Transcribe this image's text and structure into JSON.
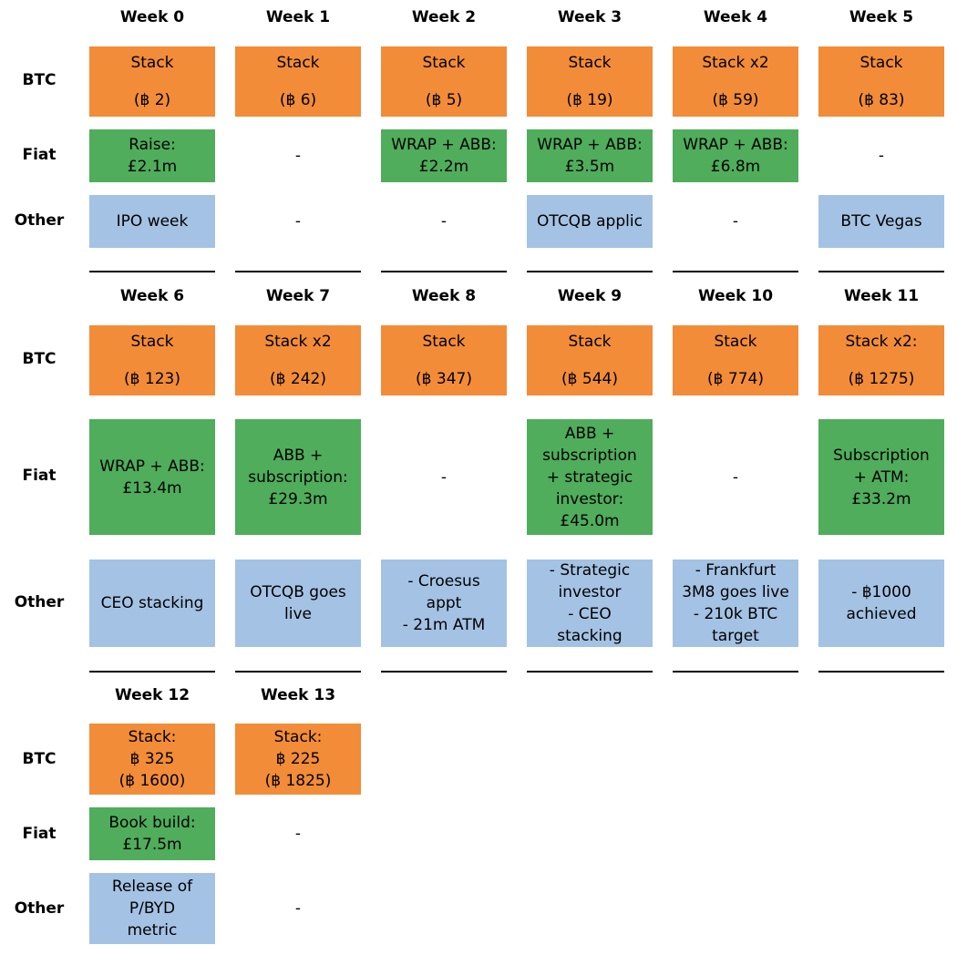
{
  "sections": [
    {
      "weeks": [
        {
          "label": "Week 0",
          "btc": [
            "Stack",
            "(฿ 2)"
          ],
          "fiat": [
            "Raise:",
            "£2.1m"
          ],
          "other": [
            "IPO week"
          ]
        },
        {
          "label": "Week 1",
          "btc": [
            "Stack",
            "(฿ 6)"
          ],
          "fiat": [
            "-"
          ],
          "other": [
            "-"
          ]
        },
        {
          "label": "Week 2",
          "btc": [
            "Stack",
            "(฿ 5)"
          ],
          "fiat": [
            "WRAP + ABB:",
            "£2.2m"
          ],
          "other": [
            "-"
          ]
        },
        {
          "label": "Week 3",
          "btc": [
            "Stack",
            "(฿ 19)"
          ],
          "fiat": [
            "WRAP + ABB:",
            "£3.5m"
          ],
          "other": [
            "OTCQB applic"
          ]
        },
        {
          "label": "Week 4",
          "btc": [
            "Stack x2",
            "(฿ 59)"
          ],
          "fiat": [
            "WRAP + ABB:",
            "£6.8m"
          ],
          "other": [
            "-"
          ]
        },
        {
          "label": "Week 5",
          "btc": [
            "Stack",
            "(฿ 83)"
          ],
          "fiat": [
            "-"
          ],
          "other": [
            "BTC Vegas"
          ]
        }
      ]
    },
    {
      "weeks": [
        {
          "label": "Week 6",
          "btc": [
            "Stack",
            "(฿ 123)"
          ],
          "fiat": [
            "WRAP + ABB:",
            "£13.4m"
          ],
          "other": [
            "CEO stacking"
          ]
        },
        {
          "label": "Week 7",
          "btc": [
            "Stack x2",
            "(฿ 242)"
          ],
          "fiat": [
            "ABB +",
            "subscription:",
            "£29.3m"
          ],
          "other": [
            "OTCQB goes",
            "live"
          ]
        },
        {
          "label": "Week 8",
          "btc": [
            "Stack",
            "(฿ 347)"
          ],
          "fiat": [
            "-"
          ],
          "other": [
            "- Croesus",
            "appt",
            "- 21m ATM"
          ]
        },
        {
          "label": "Week 9",
          "btc": [
            "Stack",
            "(฿ 544)"
          ],
          "fiat": [
            "ABB +",
            "subscription",
            "+ strategic",
            "investor:",
            "£45.0m"
          ],
          "other": [
            "- Strategic",
            "investor",
            "- CEO",
            "stacking"
          ]
        },
        {
          "label": "Week 10",
          "btc": [
            "Stack",
            "(฿ 774)"
          ],
          "fiat": [
            "-"
          ],
          "other": [
            "- Frankfurt",
            "3M8 goes live",
            "- 210k BTC",
            "target"
          ]
        },
        {
          "label": "Week 11",
          "btc": [
            "Stack x2:",
            "(฿ 1275)"
          ],
          "fiat": [
            "Subscription",
            "+ ATM:",
            "£33.2m"
          ],
          "other": [
            "- ฿1000",
            "achieved"
          ]
        }
      ]
    },
    {
      "weeks": [
        {
          "label": "Week 12",
          "btc": [
            "Stack:",
            "฿ 325",
            "(฿ 1600)"
          ],
          "fiat": [
            "Book build:",
            "£17.5m"
          ],
          "other": [
            "Release of",
            "P/BYD",
            "metric"
          ]
        },
        {
          "label": "Week 13",
          "btc": [
            "Stack:",
            "฿ 225",
            "(฿ 1825)"
          ],
          "fiat": [
            "-"
          ],
          "other": [
            "-"
          ]
        }
      ]
    }
  ],
  "row_labels": {
    "btc": "BTC",
    "fiat": "Fiat",
    "other": "Other"
  },
  "colors": {
    "btc": "#f28c38",
    "fiat": "#4fad5b",
    "other": "#a4c2e3"
  }
}
